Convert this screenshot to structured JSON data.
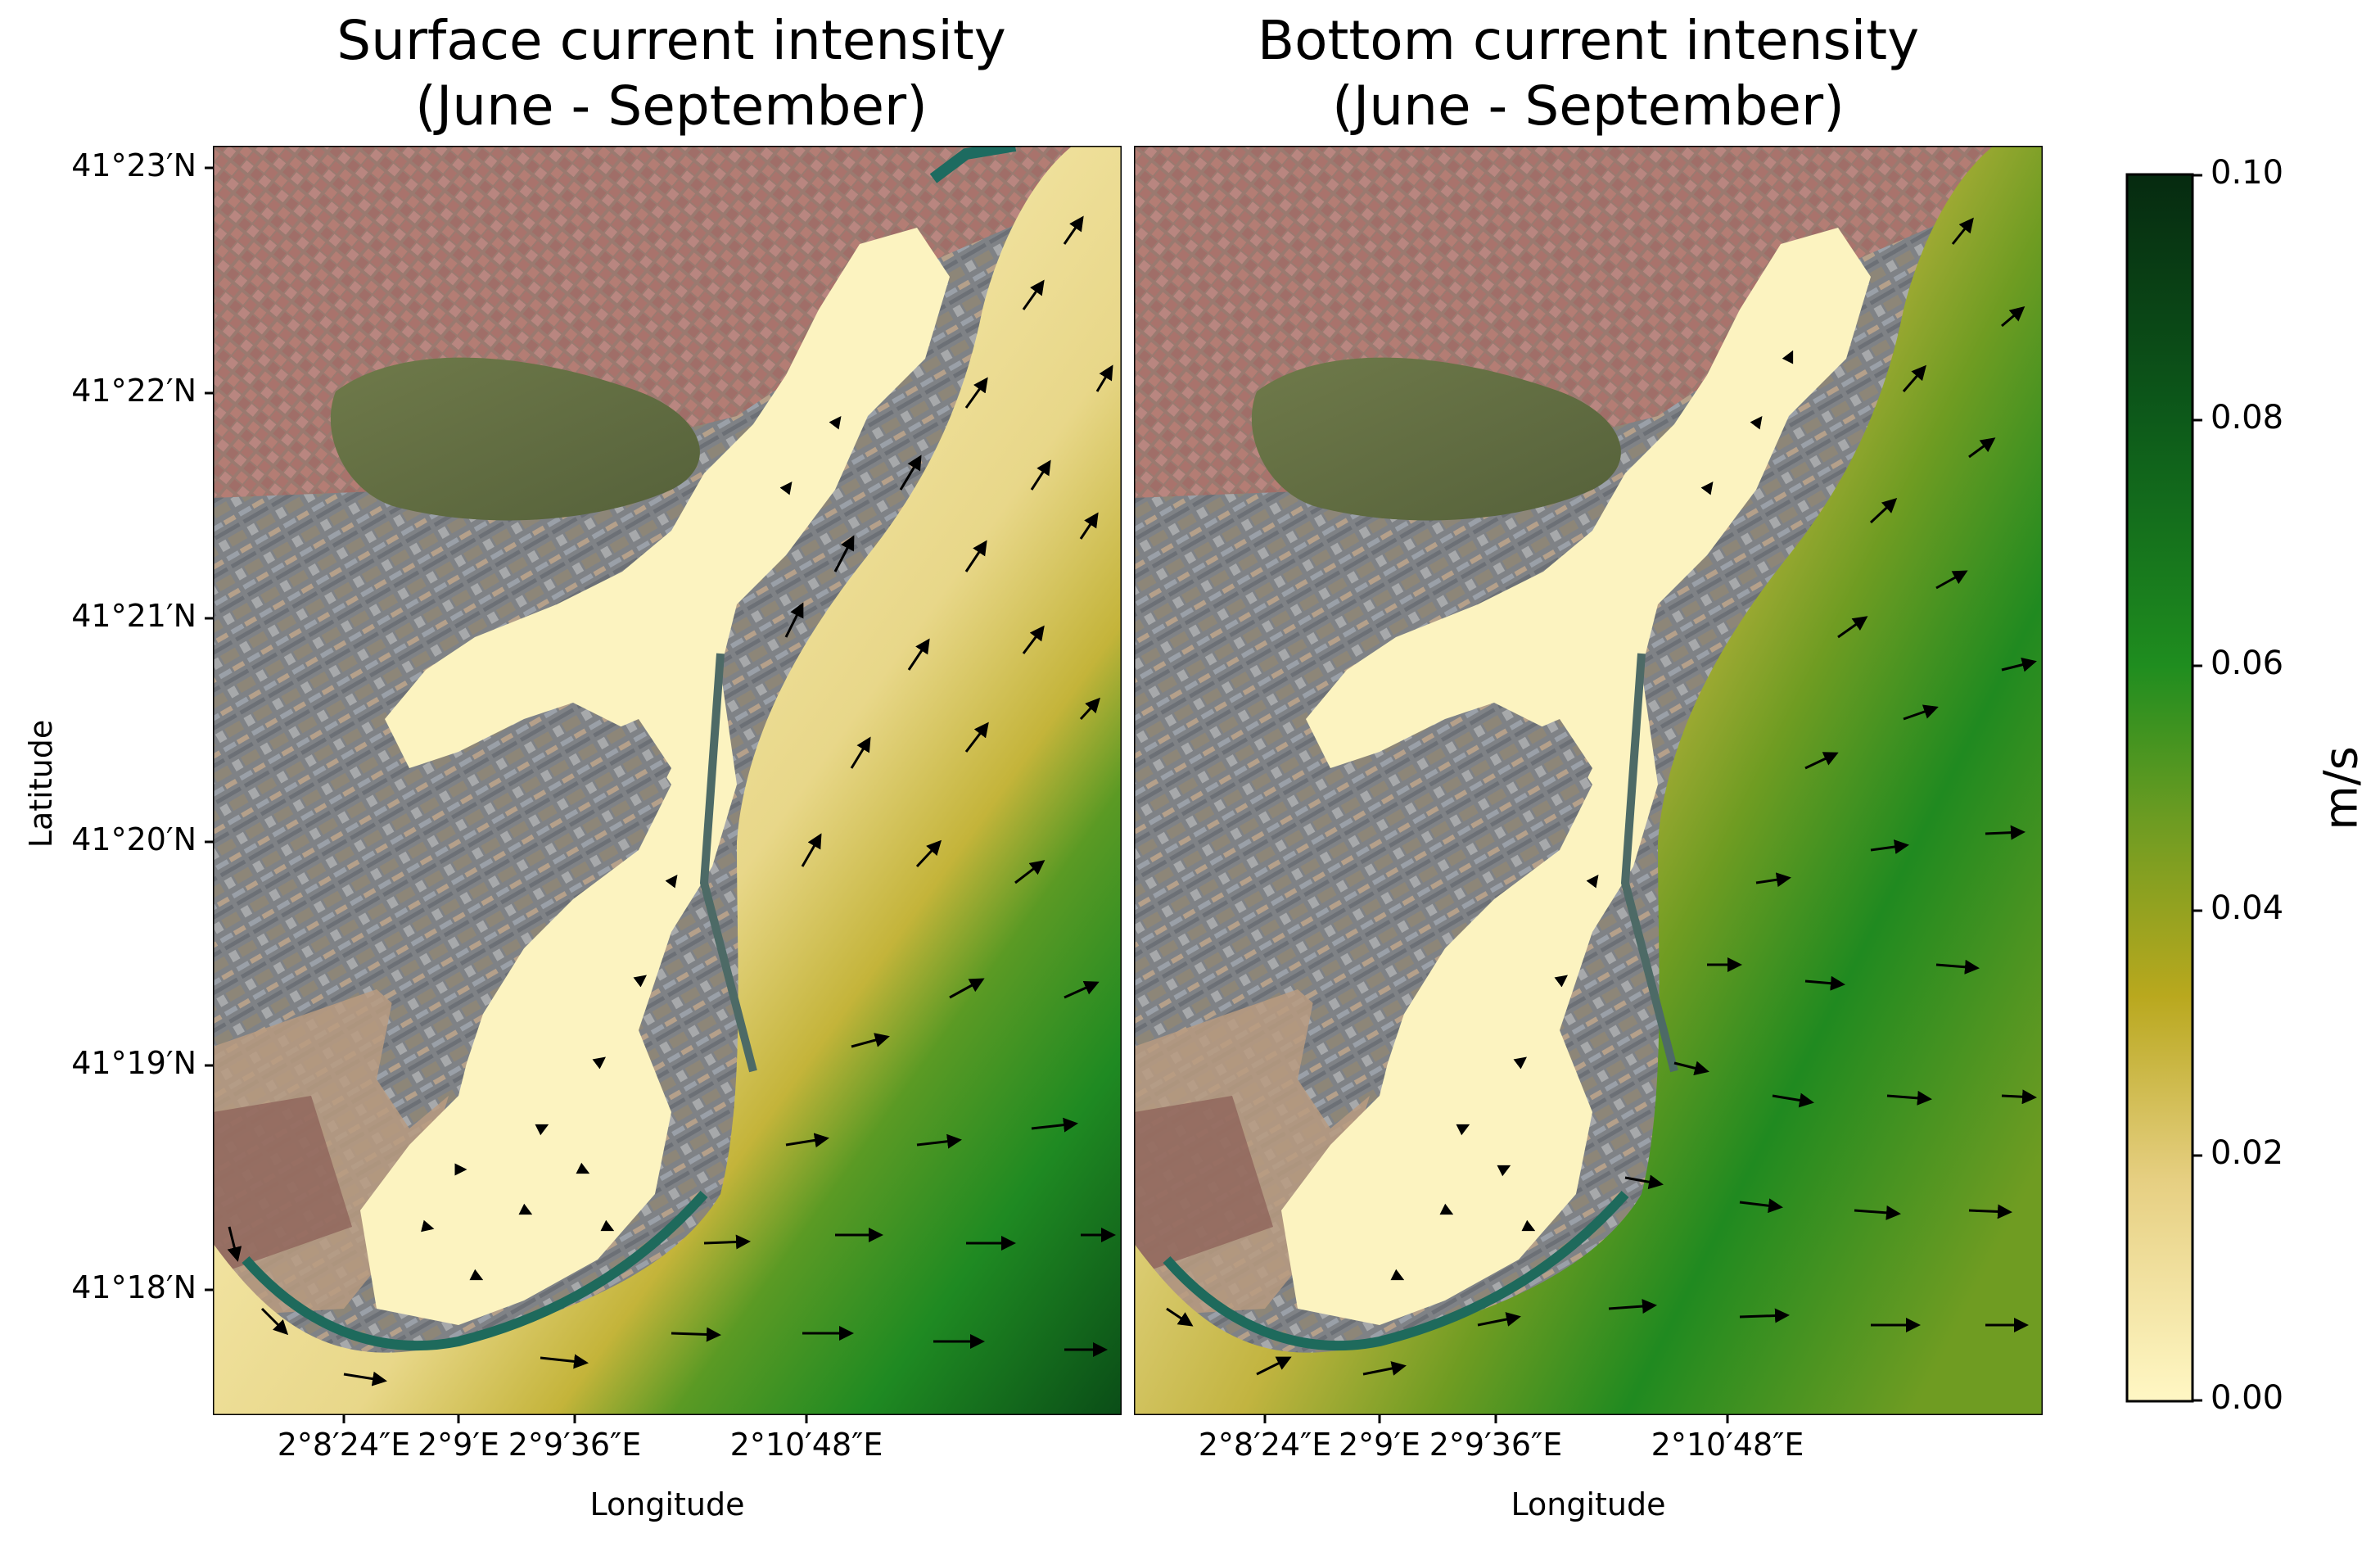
{
  "panels": [
    {
      "title_line1": "Surface current intensity",
      "title_line2": "(June - September)"
    },
    {
      "title_line1": "Bottom current intensity",
      "title_line2": "(June - September)"
    }
  ],
  "axes": {
    "ylabel": "Latitude",
    "xlabel": "Longitude",
    "yticks": [
      "41°23′N",
      "41°22′N",
      "41°21′N",
      "41°20′N",
      "41°19′N",
      "41°18′N"
    ],
    "xticks": [
      "2°8′24″E",
      "2°9′E",
      "2°9′36″E",
      "2°10′48″E"
    ]
  },
  "colorbar": {
    "label": "m/s",
    "ticks": [
      "0.10",
      "0.08",
      "0.06",
      "0.04",
      "0.02",
      "0.00"
    ],
    "range": [
      0.0,
      0.1
    ],
    "colors": [
      "#fff7c4",
      "#e6cf82",
      "#b9a81e",
      "#6f9c22",
      "#1f8d1f",
      "#0d5a1a",
      "#062a10"
    ]
  },
  "chart_data": {
    "type": "heatmap",
    "variable": "current intensity",
    "units": "m/s",
    "vmin": 0.0,
    "vmax": 0.1
  }
}
